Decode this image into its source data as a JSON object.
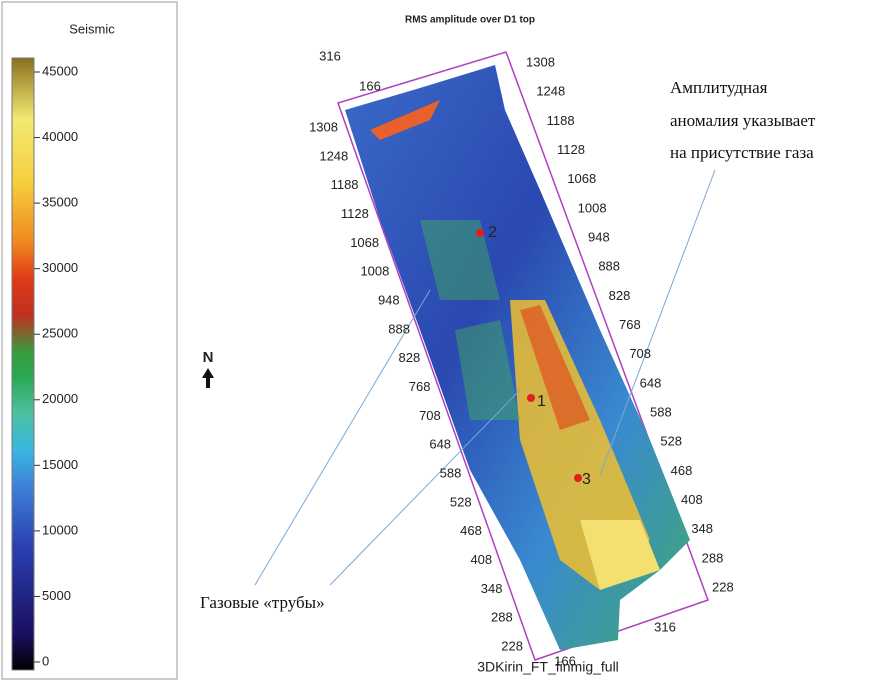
{
  "colorbar": {
    "title": "Seismic",
    "ticks": [
      0,
      5000,
      10000,
      15000,
      20000,
      25000,
      30000,
      35000,
      40000,
      45000
    ]
  },
  "map": {
    "title": "RMS amplitude over D1 top",
    "left_labels": [
      "1308",
      "1248",
      "1188",
      "1128",
      "1068",
      "1008",
      "948",
      "888",
      "828",
      "768",
      "708",
      "648",
      "588",
      "528",
      "468",
      "408",
      "348",
      "288",
      "228"
    ],
    "right_labels": [
      "1308",
      "1248",
      "1188",
      "1128",
      "1068",
      "1008",
      "948",
      "888",
      "828",
      "768",
      "708",
      "648",
      "588",
      "528",
      "468",
      "408",
      "348",
      "288",
      "228"
    ],
    "top_labels": [
      "316",
      "166"
    ],
    "bottom_labels": [
      "166",
      "316"
    ],
    "wells": [
      "1",
      "2",
      "3"
    ],
    "north": "N",
    "footer": "3DKirin_FT_finmig_full"
  },
  "annotations": {
    "anomaly": [
      "Амплитудная",
      "аномалия указывает",
      "на присутствие газа"
    ],
    "pipes": "Газовые «трубы»"
  }
}
